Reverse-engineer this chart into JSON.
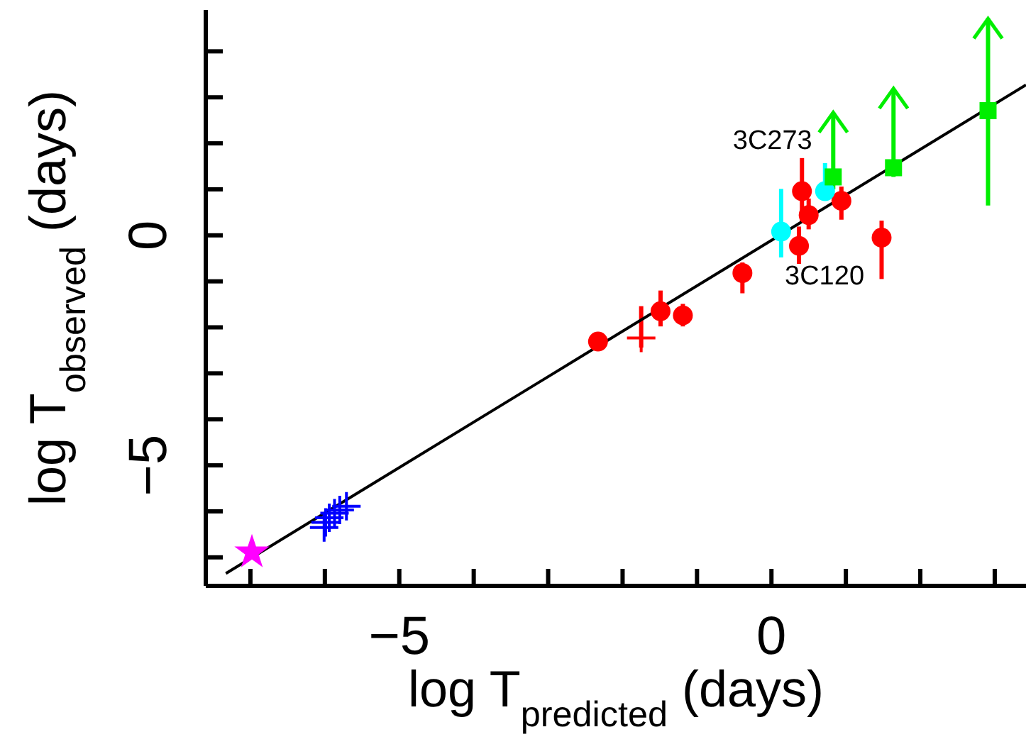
{
  "chart_data": {
    "type": "scatter",
    "xlabel": "log T$_{predicted}$ (days)",
    "ylabel": "log T$_{observed}$ (days)",
    "xlim": [
      -7.6,
      3.42
    ],
    "ylim": [
      -7.62,
      4.9
    ],
    "xticks": [
      {
        "value": -7,
        "label": null
      },
      {
        "value": -6,
        "label": null
      },
      {
        "value": -5,
        "label": "−5"
      },
      {
        "value": -4,
        "label": null
      },
      {
        "value": -3,
        "label": null
      },
      {
        "value": -2,
        "label": null
      },
      {
        "value": -1,
        "label": null
      },
      {
        "value": 0,
        "label": "0"
      },
      {
        "value": 1,
        "label": null
      },
      {
        "value": 2,
        "label": null
      },
      {
        "value": 3,
        "label": null
      }
    ],
    "yticks": [
      {
        "value": -7,
        "label": null
      },
      {
        "value": -6,
        "label": null
      },
      {
        "value": -5,
        "label": "−5"
      },
      {
        "value": -4,
        "label": null
      },
      {
        "value": -3,
        "label": null
      },
      {
        "value": -2,
        "label": null
      },
      {
        "value": -1,
        "label": null
      },
      {
        "value": 0,
        "label": "0"
      },
      {
        "value": 1,
        "label": null
      },
      {
        "value": 2,
        "label": null
      },
      {
        "value": 3,
        "label": null
      },
      {
        "value": 4,
        "label": null
      }
    ],
    "grid": false,
    "legend": false,
    "annotations": [
      {
        "text": "3C273",
        "x": 0.72,
        "y": 0.96
      },
      {
        "text": "3C120",
        "x": 0.37,
        "y": -0.23
      }
    ],
    "series": [
      {
        "type": "line",
        "color": "#000000",
        "marker": "none",
        "x": [
          -7.33,
          3.42
        ],
        "values": [
          -7.35,
          3.27
        ]
      },
      {
        "color": "#ff0000",
        "marker": "circle",
        "x": [
          -2.33,
          -1.49,
          -1.19,
          -0.39,
          0.37,
          0.41,
          0.5,
          0.94,
          1.48
        ],
        "values": [
          -2.31,
          -1.65,
          -1.74,
          -0.82,
          -0.23,
          0.96,
          0.44,
          0.75,
          -0.05
        ],
        "errors": [
          null,
          [
            -1.98,
            -1.2
          ],
          [
            -1.98,
            -1.49
          ],
          [
            -1.26,
            -0.59
          ],
          [
            -0.62,
            0.19
          ],
          [
            0.29,
            1.68
          ],
          [
            0.13,
            0.8
          ],
          [
            0.34,
            1.06
          ],
          [
            -0.95,
            0.32
          ]
        ]
      },
      {
        "color": "#ff0000",
        "marker": "cross",
        "x": [
          -1.75
        ],
        "values": [
          -2.23
        ],
        "errors": [
          [
            -2.44,
            -1.54
          ]
        ]
      },
      {
        "color": "#00ffff",
        "marker": "circle",
        "x": [
          0.13,
          0.72
        ],
        "values": [
          0.08,
          0.96
        ],
        "errors": [
          [
            -0.48,
            1.01
          ],
          [
            0.8,
            1.57
          ]
        ]
      },
      {
        "color": "#00ee00",
        "marker": "square",
        "x": [
          0.83,
          1.64,
          2.91
        ],
        "values": [
          1.27,
          1.47,
          2.71
        ],
        "errors": [
          [
            1.0,
            2.67
          ],
          [
            1.27,
            3.19
          ],
          [
            0.65,
            4.71
          ]
        ]
      },
      {
        "color": "#0000ff",
        "marker": "cross",
        "x": [
          -6.01,
          -5.99,
          -5.94,
          -5.87,
          -5.8,
          -5.71
        ],
        "values": [
          -6.35,
          -6.24,
          -6.14,
          -6.04,
          -5.97,
          -5.89
        ]
      },
      {
        "color": "#ff00ff",
        "marker": "star",
        "x": [
          -6.98
        ],
        "values": [
          -6.89
        ]
      }
    ]
  }
}
